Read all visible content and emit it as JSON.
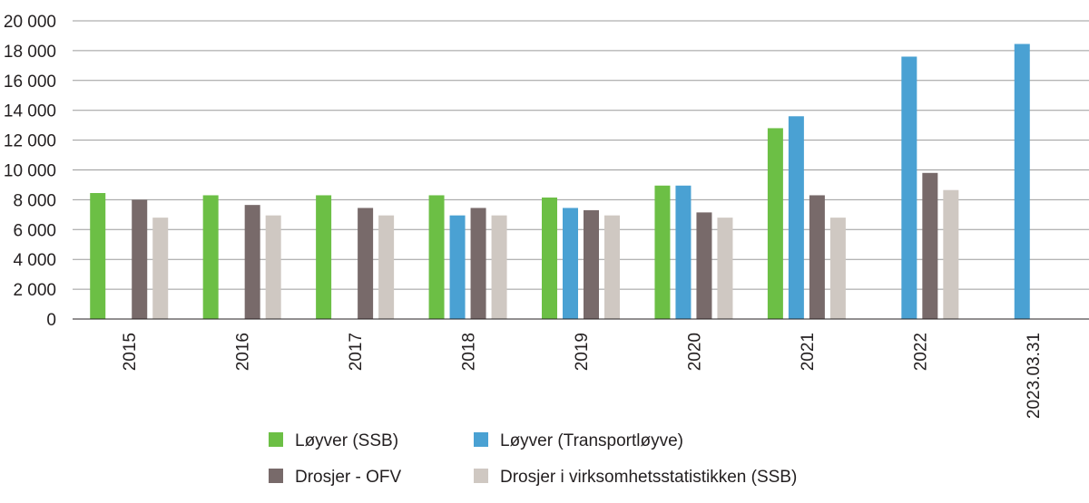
{
  "chart_data": {
    "type": "bar",
    "title": "",
    "xlabel": "",
    "ylabel": "",
    "ylim": [
      0,
      20000
    ],
    "yticks": [
      0,
      2000,
      4000,
      6000,
      8000,
      10000,
      12000,
      14000,
      16000,
      18000,
      20000
    ],
    "ytick_labels": [
      "0",
      "2 000",
      "4 000",
      "6 000",
      "8 000",
      "10 000",
      "12 000",
      "14 000",
      "16 000",
      "18 000",
      "20 000"
    ],
    "grid": true,
    "legend_position": "bottom",
    "categories": [
      "2015",
      "2016",
      "2017",
      "2018",
      "2019",
      "2020",
      "2021",
      "2022",
      "2023.03.31"
    ],
    "series": [
      {
        "name": "Løyver (SSB)",
        "color": "#6cbf45",
        "values": [
          8450,
          8300,
          8300,
          8300,
          8150,
          8950,
          12800,
          null,
          null
        ]
      },
      {
        "name": "Løyver (Transportløyve)",
        "color": "#4aa1d3",
        "values": [
          null,
          null,
          null,
          6950,
          7450,
          8950,
          13600,
          17600,
          18450
        ]
      },
      {
        "name": "Drosjer - OFV",
        "color": "#786a6a",
        "values": [
          8000,
          7650,
          7450,
          7450,
          7300,
          7150,
          8300,
          9800,
          null
        ]
      },
      {
        "name": "Drosjer i virksomhetsstatistikken (SSB)",
        "color": "#cfc8c2",
        "values": [
          6800,
          6950,
          6950,
          6950,
          6950,
          6800,
          6800,
          8650,
          null
        ]
      }
    ]
  }
}
